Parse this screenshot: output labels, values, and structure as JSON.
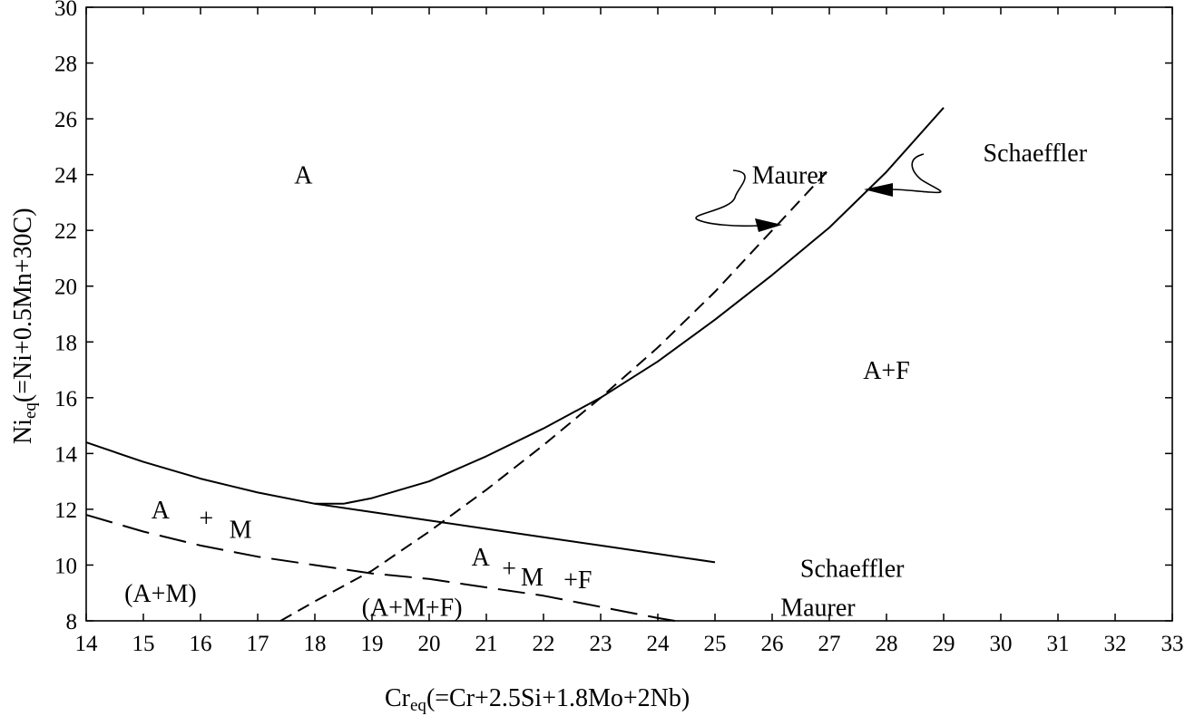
{
  "chart_data": {
    "type": "line",
    "xlabel_main": "Cr",
    "xlabel_sub": "eq",
    "xlabel_rest": "(=Cr+2.5Si+1.8Mo+2Nb)",
    "ylabel_main": "Ni",
    "ylabel_sub": "eq",
    "ylabel_rest": "(=Ni+0.5Mn+30C)",
    "xlim": [
      14,
      33
    ],
    "ylim": [
      8,
      30
    ],
    "xticks": [
      "14",
      "15",
      "16",
      "17",
      "18",
      "19",
      "20",
      "21",
      "22",
      "23",
      "24",
      "25",
      "26",
      "27",
      "28",
      "29",
      "30",
      "31",
      "32",
      "33"
    ],
    "yticks": [
      "8",
      "10",
      "12",
      "14",
      "16",
      "18",
      "20",
      "22",
      "24",
      "26",
      "28",
      "30"
    ],
    "grid": false,
    "series": [
      {
        "name": "Schaeffler",
        "style": "solid",
        "x": [
          14,
          15,
          16,
          17,
          18,
          19,
          20,
          21,
          22,
          23,
          24,
          25
        ],
        "y": [
          14.4,
          13.7,
          13.1,
          12.6,
          12.2,
          11.9,
          11.6,
          11.3,
          11.0,
          10.7,
          10.4,
          10.1
        ]
      },
      {
        "name": "Schaeffler",
        "style": "solid",
        "x": [
          18.0,
          18.5,
          19.0,
          20.0,
          21.0,
          22.0,
          23.0,
          24.0,
          25.0,
          26.0,
          27.0,
          28.0,
          29.0
        ],
        "y": [
          12.2,
          12.2,
          12.4,
          13.0,
          13.9,
          14.9,
          16.0,
          17.3,
          18.8,
          20.4,
          22.1,
          24.1,
          26.4
        ]
      },
      {
        "name": "Maurer",
        "style": "long-dash",
        "x": [
          14,
          15,
          16,
          17,
          18,
          19,
          20,
          21,
          22,
          23,
          24,
          24.3
        ],
        "y": [
          11.8,
          11.2,
          10.7,
          10.3,
          10.0,
          9.7,
          9.5,
          9.2,
          8.9,
          8.5,
          8.1,
          8.0
        ]
      },
      {
        "name": "Maurer",
        "style": "dash",
        "x": [
          17.4,
          18.0,
          19.0,
          20.0,
          21.0,
          22.0,
          23.0,
          24.0,
          25.0,
          26.0,
          27.0
        ],
        "y": [
          8.0,
          8.7,
          9.8,
          11.2,
          12.7,
          14.3,
          16.0,
          17.8,
          19.8,
          22.0,
          24.2
        ]
      }
    ],
    "region_labels": [
      {
        "text": "A",
        "x": 17.8,
        "y": 24.0
      },
      {
        "text": "A+F",
        "x": 28.0,
        "y": 17.0
      },
      {
        "text": "A",
        "x": 15.3,
        "y": 12.0
      },
      {
        "text": "+",
        "x": 16.1,
        "y": 11.7
      },
      {
        "text": "M",
        "x": 16.7,
        "y": 11.3
      },
      {
        "text": "(A+M)",
        "x": 15.3,
        "y": 9.0
      },
      {
        "text": "A",
        "x": 20.9,
        "y": 10.3
      },
      {
        "text": "+",
        "x": 21.4,
        "y": 9.9
      },
      {
        "text": "M",
        "x": 21.8,
        "y": 9.6
      },
      {
        "text": "+F",
        "x": 22.6,
        "y": 9.5
      },
      {
        "text": "(A+M+F)",
        "x": 19.7,
        "y": 8.5
      }
    ],
    "annotations": [
      {
        "text": "Maurer",
        "x": 26.3,
        "y": 24.0
      },
      {
        "text": "Schaeffler",
        "x": 30.6,
        "y": 24.8
      },
      {
        "text": "Schaeffler",
        "x": 27.4,
        "y": 9.9
      },
      {
        "text": "Maurer",
        "x": 26.8,
        "y": 8.5
      }
    ]
  }
}
